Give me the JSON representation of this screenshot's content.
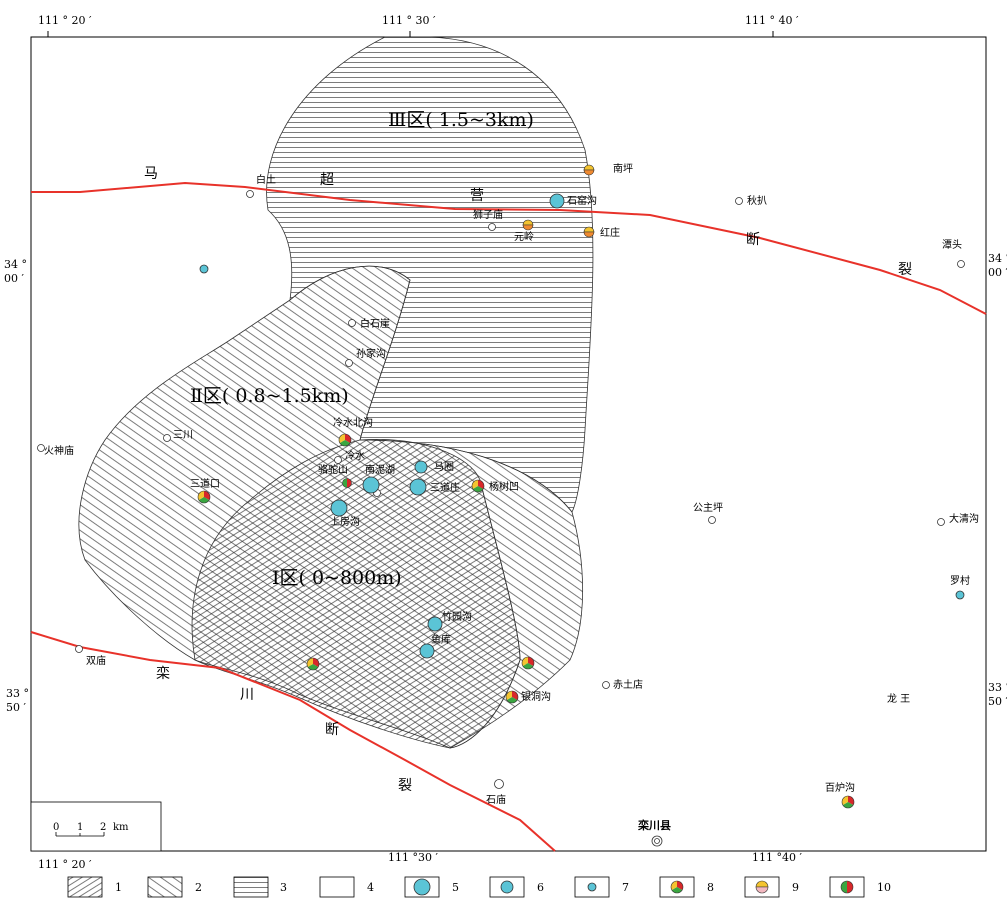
{
  "coords": {
    "lon_left": "111 ° 20 ′",
    "lon_mid": "111 ° 30 ′",
    "lon_right": "111 ° 40 ′",
    "lon_right_bottom": "111 °40 ′",
    "lon_mid_bottom": "111 °30 ′",
    "lat_34_deg": "34 °",
    "lat_34_min": "00 ′",
    "lat_33_deg": "33 °",
    "lat_33_min": "50 ′"
  },
  "zones": {
    "zone1": "Ⅰ区( 0~800m)",
    "zone2": "Ⅱ区( 0.8~1.5km)",
    "zone3": "Ⅲ区( 1.5~3km)"
  },
  "faults": {
    "machao": [
      "马",
      "超",
      "营",
      "断",
      "裂"
    ],
    "luanchuan": [
      "栾",
      "川",
      "断",
      "裂"
    ]
  },
  "places": {
    "baitu": "白土",
    "nanping": "南坪",
    "shiyaogou": "石窑沟",
    "shizidian": "狮子庙",
    "yuanling": "元岭",
    "hongzhuang": "红庄",
    "qiuba": "秋扒",
    "tantou": "潭头",
    "baishiya": "白石崖",
    "sunjiagou": "孙家沟",
    "huoshenmiao": "火神庙",
    "sanchuan": "三川",
    "lengshuibeigou": "冷水北沟",
    "lengshui": "冷水",
    "luotuoshan": "骆驼山",
    "nannihu": "南泥湖",
    "mayuan": "马圈",
    "sandaozhuang": "三道庄",
    "yangshuao": "杨树凹",
    "sandaokou": "三道口",
    "shangfanggou": "上房沟",
    "gongzhuping": "公主坪",
    "daqinggou": "大清沟",
    "luocun": "罗村",
    "zhuyuangou": "竹园沟",
    "yuku": "鱼库",
    "shuangmiao": "双庙",
    "chitudian": "赤土店",
    "yindonggou": "银洞沟",
    "longwangchuang": "龙 王 ",
    "shimiao": "石庙",
    "bailugou": "百炉沟",
    "luanchuanxian": "栾川县"
  },
  "scale": {
    "zero": "0",
    "one": "1",
    "two": "2",
    "unit": "km"
  },
  "legend": [
    "1",
    "2",
    "3",
    "4",
    "5",
    "6",
    "7",
    "8",
    "9",
    "10"
  ],
  "colors": {
    "fault": "#e8322a",
    "cyan": "#5bc4d6",
    "yellow": "#f4c430",
    "green": "#3aa640",
    "red": "#d8282a",
    "orange": "#f08a30",
    "pink": "#f2b8c0"
  }
}
